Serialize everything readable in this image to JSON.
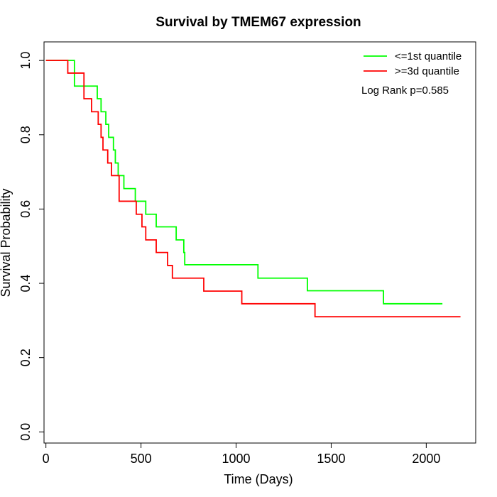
{
  "chart_data": {
    "type": "line",
    "title": "Survival by TMEM67 expression",
    "xlabel": "Time (Days)",
    "ylabel": "Survival Probability",
    "xlim": [
      -10,
      2260
    ],
    "ylim": [
      -0.03,
      1.05
    ],
    "xticks": [
      0,
      500,
      1000,
      1500,
      2000
    ],
    "yticks": [
      0.0,
      0.2,
      0.4,
      0.6,
      0.8,
      1.0
    ],
    "ytick_labels": [
      "0.0",
      "0.2",
      "0.4",
      "0.6",
      "0.8",
      "1.0"
    ],
    "step": true,
    "legend_position": "top-right",
    "annotation": "Log Rank p=0.585",
    "series": [
      {
        "name": "<=1st quantile",
        "color": "#00ff00",
        "x": [
          0,
          150,
          270,
          290,
          315,
          330,
          355,
          365,
          380,
          410,
          470,
          525,
          580,
          685,
          725,
          730,
          738,
          745,
          1115,
          1375,
          1775,
          2085
        ],
        "y": [
          1.0,
          0.931,
          0.897,
          0.862,
          0.828,
          0.793,
          0.759,
          0.724,
          0.69,
          0.655,
          0.621,
          0.586,
          0.552,
          0.517,
          0.483,
          0.45,
          0.45,
          0.45,
          0.414,
          0.38,
          0.345,
          0.345
        ]
      },
      {
        "name": ">=3d quantile",
        "color": "#ff0000",
        "x": [
          0,
          115,
          200,
          240,
          275,
          290,
          300,
          325,
          345,
          385,
          475,
          505,
          525,
          580,
          640,
          665,
          830,
          1030,
          1415,
          2180
        ],
        "y": [
          1.0,
          0.966,
          0.897,
          0.862,
          0.828,
          0.793,
          0.759,
          0.724,
          0.69,
          0.621,
          0.586,
          0.552,
          0.517,
          0.483,
          0.448,
          0.414,
          0.379,
          0.345,
          0.31,
          0.31
        ]
      }
    ]
  }
}
